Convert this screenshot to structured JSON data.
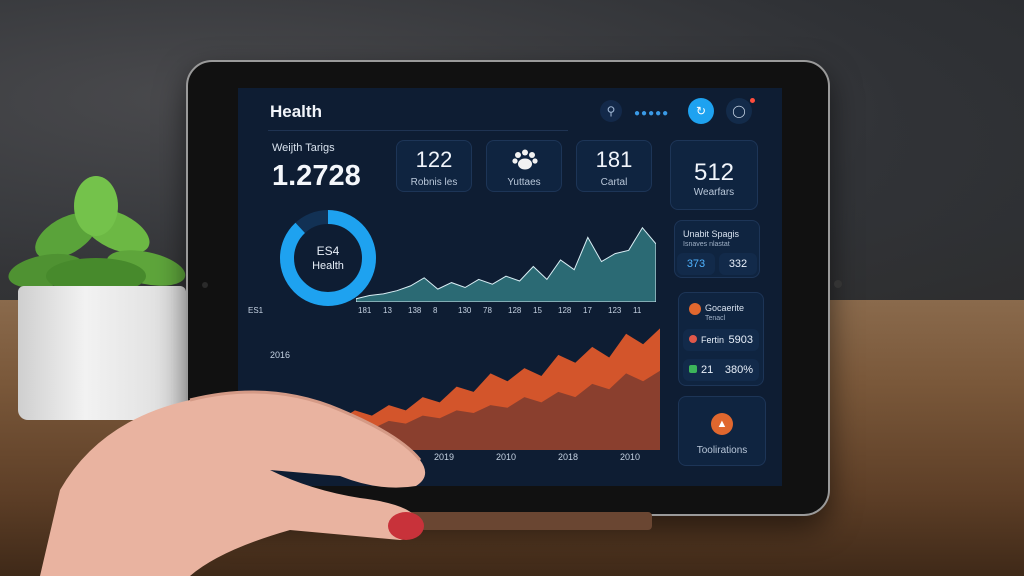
{
  "header": {
    "title": "Health"
  },
  "hero": {
    "label": "Weijth Tarigs",
    "value": "1.2728"
  },
  "stats": [
    {
      "value": "122",
      "label": "Robnis les"
    },
    {
      "icon": "paw-icon",
      "label": "Yuttaes"
    },
    {
      "value": "181",
      "label": "Cartal"
    }
  ],
  "side_card": {
    "value": "512",
    "label": "Wearfars"
  },
  "donut": {
    "value": "ES4",
    "label": "Health",
    "percent": 0.88,
    "color": "#1ea2f0"
  },
  "top_chart": {
    "type": "area",
    "axis_left": "ES1",
    "x_labels": [
      "181",
      "13",
      "138",
      "8",
      "130",
      "78",
      "128",
      "15",
      "128",
      "17",
      "123",
      "11"
    ],
    "values": [
      2,
      4,
      5,
      7,
      10,
      15,
      8,
      12,
      9,
      14,
      11,
      16,
      13,
      22,
      14,
      26,
      20,
      40,
      25,
      30,
      32,
      46,
      36
    ],
    "color": "#2b6a74"
  },
  "bottom_chart": {
    "type": "area",
    "series_label": "2016",
    "x_labels": [
      "2019",
      "2010",
      "2018",
      "2010"
    ],
    "series": [
      {
        "values": [
          22,
          30,
          26,
          34,
          30,
          40,
          36,
          48,
          44,
          58,
          52,
          62,
          56,
          72,
          66,
          78,
          70,
          88,
          80,
          92
        ],
        "color": "#d3552b"
      },
      {
        "values": [
          12,
          18,
          16,
          22,
          20,
          26,
          24,
          30,
          28,
          34,
          32,
          40,
          36,
          44,
          40,
          50,
          46,
          58,
          52,
          60
        ],
        "color": "#8a3f2e"
      }
    ]
  },
  "sidebar": {
    "section1": {
      "title": "Unabit Spagis",
      "sub": "Isnaves nlastat",
      "a": "373",
      "b": "332"
    },
    "section2": {
      "title": "Gocaerite",
      "sub": "Tenacl",
      "row1_label": "Fertin",
      "row1_value": "5903",
      "row2_label": "21",
      "row2_value": "380%"
    },
    "section3": {
      "label": "Toolirations",
      "icon": "alert-icon"
    }
  },
  "colors": {
    "screen_bg": "#0e1d33",
    "accent": "#1ea2f0",
    "orange": "#e0672e"
  }
}
